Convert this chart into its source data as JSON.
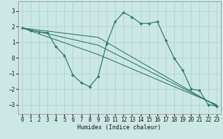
{
  "xlabel": "Humidex (Indice chaleur)",
  "xlim": [
    -0.5,
    23.5
  ],
  "ylim": [
    -3.6,
    3.6
  ],
  "yticks": [
    -3,
    -2,
    -1,
    0,
    1,
    2,
    3
  ],
  "xticks": [
    0,
    1,
    2,
    3,
    4,
    5,
    6,
    7,
    8,
    9,
    10,
    11,
    12,
    13,
    14,
    15,
    16,
    17,
    18,
    19,
    20,
    21,
    22,
    23
  ],
  "bg_color": "#cce8e4",
  "grid_color": "#aacfcb",
  "line_color": "#2d7870",
  "line1_x": [
    0,
    1,
    2,
    3,
    4,
    5,
    6,
    7,
    8,
    9,
    10,
    11,
    12,
    13,
    14,
    15,
    16,
    17,
    18,
    19,
    20,
    21,
    22,
    23
  ],
  "line1_y": [
    1.9,
    1.75,
    1.65,
    1.6,
    0.7,
    0.15,
    -1.1,
    -1.6,
    -1.85,
    -1.2,
    0.9,
    2.3,
    2.9,
    2.6,
    2.2,
    2.2,
    2.3,
    1.1,
    -0.05,
    -0.8,
    -2.0,
    -2.1,
    -3.0,
    -3.1
  ],
  "line2_x": [
    0,
    23
  ],
  "line2_y": [
    1.9,
    -3.1
  ],
  "line3_x": [
    0,
    23
  ],
  "line3_y": [
    1.9,
    -3.1
  ],
  "line4_x": [
    0,
    23
  ],
  "line4_y": [
    1.9,
    -3.1
  ],
  "straight_lines": [
    {
      "x": [
        0,
        23
      ],
      "y": [
        1.9,
        -3.1
      ]
    },
    {
      "x": [
        0,
        23
      ],
      "y": [
        1.9,
        -3.1
      ]
    },
    {
      "x": [
        0,
        23
      ],
      "y": [
        1.9,
        -3.1
      ]
    }
  ],
  "fan_lines": [
    {
      "x": [
        0,
        9,
        23
      ],
      "y": [
        1.9,
        1.3,
        -3.1
      ]
    },
    {
      "x": [
        0,
        9,
        23
      ],
      "y": [
        1.9,
        0.8,
        -3.05
      ]
    },
    {
      "x": [
        0,
        9,
        23
      ],
      "y": [
        1.9,
        0.2,
        -3.0
      ]
    }
  ]
}
